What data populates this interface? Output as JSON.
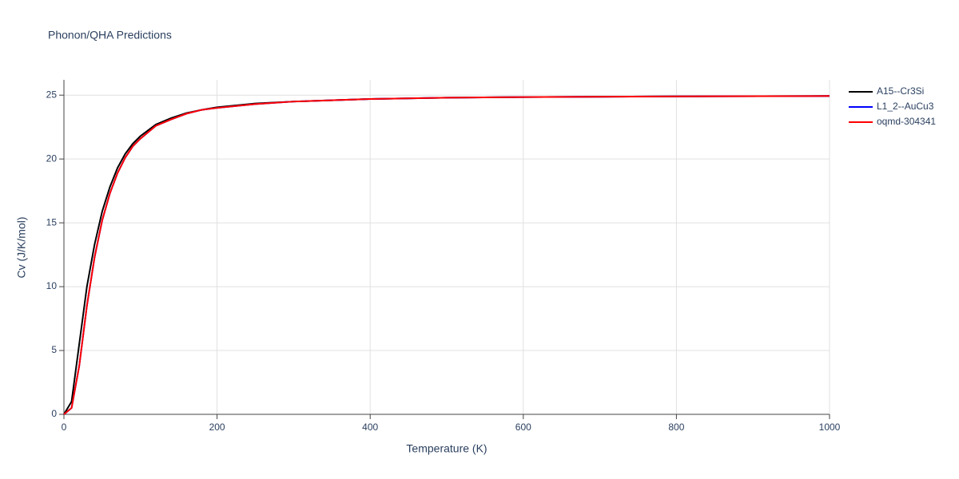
{
  "chart_data": {
    "type": "line",
    "title": "Phonon/QHA Predictions",
    "x_label": "Temperature (K)",
    "y_label": "Cv (J/K/mol)",
    "x": [
      0,
      10,
      20,
      30,
      40,
      50,
      60,
      70,
      80,
      90,
      100,
      120,
      140,
      160,
      180,
      200,
      250,
      300,
      400,
      500,
      600,
      800,
      1000
    ],
    "series": [
      {
        "name": "A15--Cr3Si",
        "color": "#000000",
        "values": [
          0,
          1.0,
          5.5,
          10.0,
          13.3,
          15.9,
          17.8,
          19.3,
          20.4,
          21.2,
          21.8,
          22.7,
          23.2,
          23.6,
          23.85,
          24.05,
          24.35,
          24.5,
          24.7,
          24.8,
          24.85,
          24.9,
          24.93
        ]
      },
      {
        "name": "L1_2--AuCu3",
        "color": "#0000ff",
        "values": [
          0,
          0.5,
          3.8,
          8.5,
          12.3,
          15.2,
          17.3,
          18.9,
          20.1,
          21.0,
          21.6,
          22.6,
          23.1,
          23.55,
          23.85,
          24.0,
          24.3,
          24.5,
          24.7,
          24.8,
          24.85,
          24.9,
          24.93
        ]
      },
      {
        "name": "oqmd-304341",
        "color": "#ff0000",
        "values": [
          0,
          0.5,
          3.8,
          8.5,
          12.3,
          15.2,
          17.3,
          18.9,
          20.1,
          21.0,
          21.6,
          22.6,
          23.1,
          23.55,
          23.85,
          24.0,
          24.3,
          24.5,
          24.7,
          24.8,
          24.85,
          24.9,
          24.93
        ]
      }
    ],
    "xlim": [
      0,
      1000
    ],
    "xticks": [
      0,
      200,
      400,
      600,
      800,
      1000
    ],
    "ylim": [
      0,
      26.2
    ],
    "yticks": [
      0,
      5,
      10,
      15,
      20,
      25
    ],
    "grid": true,
    "legend": "right"
  }
}
